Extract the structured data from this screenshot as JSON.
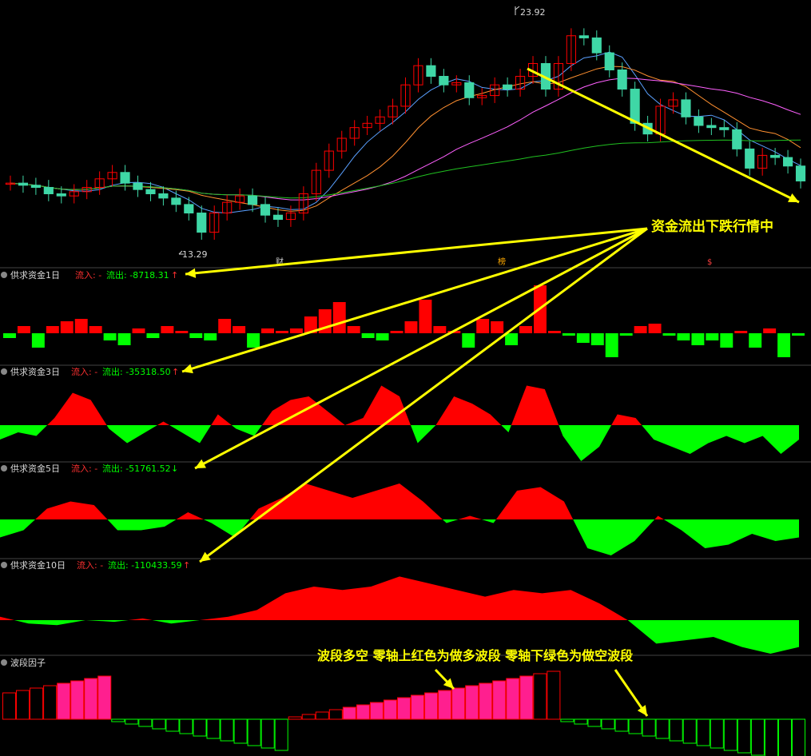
{
  "colors": {
    "up": "#ff0000",
    "down": "#00ff00",
    "candle_down": "#3fd7a6",
    "annot": "#ffff00",
    "text": "#d8d8d8",
    "pink": "#ff1f8f",
    "divider": "#444444"
  },
  "price_chart": {
    "high_label": "23.92",
    "low_label": "13.29",
    "events": [
      {
        "text": "财"
      },
      {
        "text": "榜"
      },
      {
        "text": "$"
      }
    ]
  },
  "panels": [
    {
      "title": "供求资金1日",
      "inflow_label": "流入: -",
      "outflow_label": "流出: -8718.31",
      "arrow": "↑"
    },
    {
      "title": "供求资金3日",
      "inflow_label": "流入: -",
      "outflow_label": "流出: -35318.50",
      "arrow": "↑"
    },
    {
      "title": "供求资金5日",
      "inflow_label": "流入: -",
      "outflow_label": "流出: -51761.52",
      "arrow": "↓"
    },
    {
      "title": "供求资金10日",
      "inflow_label": "流入: -",
      "outflow_label": "流出: -110433.59",
      "arrow": "↑"
    },
    {
      "title": "波段因子"
    }
  ],
  "annotations": {
    "main": "资金流出下跌行情中",
    "wave": "波段多空 零轴上红色为做多波段 零轴下绿色为做空波段"
  },
  "chart_data": [
    {
      "type": "candlestick",
      "name": "price",
      "close": [
        16.2,
        16.1,
        16.0,
        15.7,
        15.6,
        15.8,
        16.0,
        16.4,
        16.7,
        16.2,
        15.9,
        15.7,
        15.5,
        15.2,
        14.8,
        13.9,
        14.8,
        15.3,
        15.6,
        15.2,
        14.7,
        14.5,
        14.8,
        15.7,
        16.8,
        17.7,
        18.3,
        18.8,
        19.0,
        19.3,
        19.8,
        20.8,
        21.7,
        21.2,
        20.8,
        20.9,
        20.2,
        20.3,
        20.8,
        20.6,
        21.2,
        21.8,
        20.6,
        21.8,
        23.1,
        23.0,
        22.3,
        21.5,
        20.6,
        19.0,
        18.5,
        19.8,
        20.1,
        19.3,
        18.9,
        18.8,
        18.7,
        17.8,
        16.9,
        17.5,
        17.4,
        17.0,
        16.3
      ],
      "high_label": 23.92,
      "low_label": 13.29
    },
    {
      "type": "bar",
      "name": "供求资金1日",
      "values": [
        -0.2,
        0.3,
        -0.6,
        0.3,
        0.5,
        0.6,
        0.3,
        -0.3,
        -0.5,
        0.2,
        -0.2,
        0.3,
        0.1,
        -0.2,
        -0.3,
        0.6,
        0.3,
        -0.6,
        0.2,
        0.1,
        0.2,
        0.7,
        1.0,
        1.3,
        0.3,
        -0.2,
        -0.3,
        0.1,
        0.5,
        1.4,
        0.3,
        0.1,
        -0.6,
        0.6,
        0.5,
        -0.5,
        0.3,
        2.0,
        0.1,
        -0.1,
        -0.4,
        -0.5,
        -1.0,
        -0.1,
        0.3,
        0.4,
        -0.1,
        -0.3,
        -0.5,
        -0.3,
        -0.6,
        0.1,
        -0.6,
        0.2,
        -1.0,
        -0.1
      ]
    },
    {
      "type": "area",
      "name": "供求资金3日",
      "values": [
        -0.4,
        -0.2,
        -0.3,
        0.2,
        0.9,
        0.7,
        -0.1,
        -0.5,
        -0.2,
        0.1,
        -0.2,
        -0.5,
        0.3,
        -0.1,
        -0.3,
        0.4,
        0.7,
        0.8,
        0.4,
        0.0,
        0.2,
        1.1,
        0.8,
        -0.5,
        0.0,
        0.8,
        0.6,
        0.3,
        -0.2,
        1.1,
        1.0,
        -0.3,
        -1.0,
        -0.6,
        0.3,
        0.2,
        -0.4,
        -0.6,
        -0.8,
        -0.5,
        -0.3,
        -0.5,
        -0.3,
        -0.8,
        -0.4
      ]
    },
    {
      "type": "area",
      "name": "供求资金5日",
      "values": [
        -0.5,
        -0.3,
        0.3,
        0.5,
        0.4,
        -0.3,
        -0.3,
        -0.2,
        0.2,
        -0.1,
        -0.5,
        0.3,
        0.6,
        1.0,
        0.8,
        0.6,
        0.8,
        1.0,
        0.5,
        -0.1,
        0.1,
        -0.1,
        0.8,
        0.9,
        0.5,
        -0.8,
        -1.0,
        -0.6,
        0.1,
        -0.3,
        -0.8,
        -0.7,
        -0.4,
        -0.6,
        -0.5
      ]
    },
    {
      "type": "area",
      "name": "供求资金10日",
      "values": [
        0.1,
        -0.1,
        -0.15,
        0.0,
        -0.05,
        0.05,
        -0.1,
        0.0,
        0.1,
        0.3,
        0.8,
        1.0,
        0.9,
        1.0,
        1.3,
        1.1,
        0.9,
        0.7,
        0.9,
        0.8,
        0.9,
        0.5,
        0.0,
        -0.7,
        -0.6,
        -0.5,
        -0.8,
        -1.0,
        -0.8
      ]
    },
    {
      "type": "bar",
      "name": "波段因子",
      "values": [
        0.55,
        0.6,
        0.65,
        0.7,
        0.75,
        0.8,
        0.85,
        0.9,
        -0.05,
        -0.1,
        -0.15,
        -0.2,
        -0.25,
        -0.3,
        -0.35,
        -0.4,
        -0.45,
        -0.5,
        -0.55,
        -0.6,
        -0.65,
        0.05,
        0.1,
        0.15,
        0.2,
        0.25,
        0.3,
        0.35,
        0.4,
        0.45,
        0.5,
        0.55,
        0.6,
        0.65,
        0.7,
        0.75,
        0.8,
        0.85,
        0.9,
        0.95,
        1.0,
        -0.05,
        -0.1,
        -0.15,
        -0.2,
        -0.25,
        -0.3,
        -0.35,
        -0.4,
        -0.45,
        -0.5,
        -0.55,
        -0.6,
        -0.65,
        -0.7,
        -0.75,
        -0.8,
        -0.85,
        -0.9
      ]
    }
  ]
}
